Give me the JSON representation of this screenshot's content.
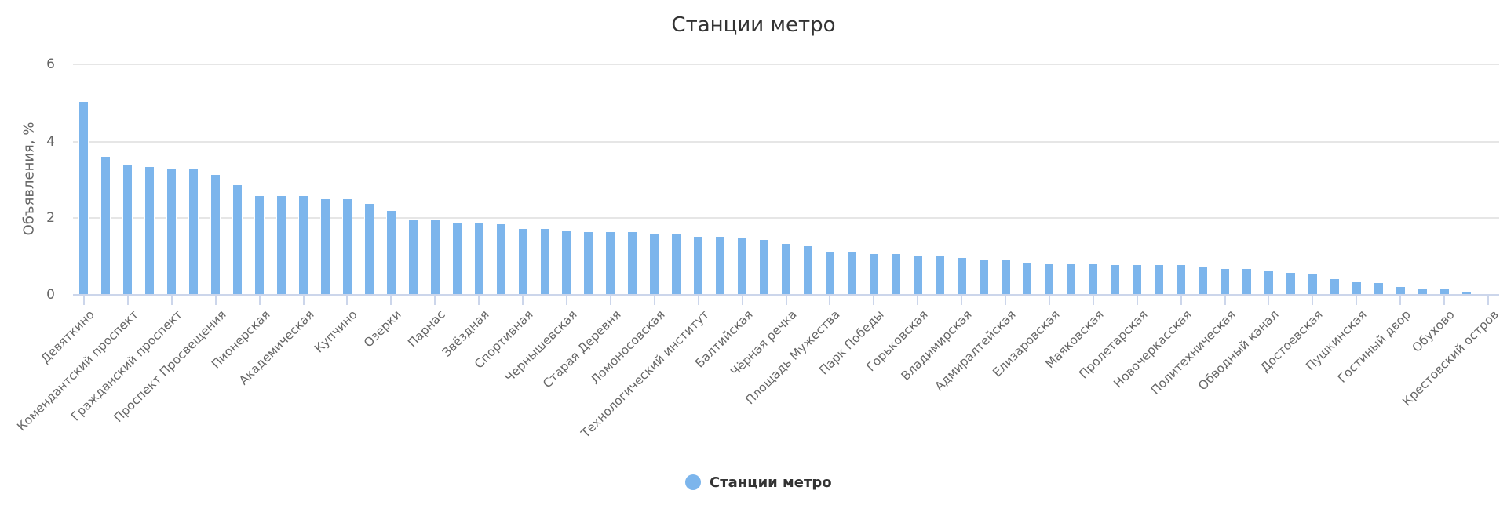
{
  "chart": {
    "title": "Станции метро",
    "y_axis_title": "Объявления, %",
    "y_ticks": [
      "0",
      "2",
      "4",
      "6"
    ],
    "legend": {
      "label": "Станции метро",
      "color": "#7cb5ec"
    },
    "colors": {
      "bar": "#7cb5ec",
      "grid": "#e6e6e6",
      "axis": "#ccd6eb",
      "text": "#666666",
      "title": "#333333"
    }
  },
  "chart_data": {
    "type": "bar",
    "title": "Станции метро",
    "xlabel": "",
    "ylabel": "Объявления, %",
    "ylim": [
      0,
      6
    ],
    "yticks": [
      0,
      2,
      4,
      6
    ],
    "grid": true,
    "legend_position": "bottom-center",
    "label_step": 2,
    "categories": [
      "Девяткино",
      null,
      "Комендантский проспект",
      null,
      "Гражданский проспект",
      null,
      "Проспект Просвещения",
      null,
      "Пионерская",
      null,
      "Академическая",
      null,
      "Купчино",
      null,
      "Озерки",
      null,
      "Парнас",
      null,
      "Звёздная",
      null,
      "Спортивная",
      null,
      "Чернышевская",
      null,
      "Старая Деревня",
      null,
      "Ломоносовская",
      null,
      "Технологический институт",
      null,
      "Балтийская",
      null,
      "Чёрная речка",
      null,
      "Площадь Мужества",
      null,
      "Парк Победы",
      null,
      "Горьковская",
      null,
      "Владимирская",
      null,
      "Адмиралтейская",
      null,
      "Елизаровская",
      null,
      "Маяковская",
      null,
      "Пролетарская",
      null,
      "Новочеркасская",
      null,
      "Политехническая",
      null,
      "Обводный канал",
      null,
      "Достоевская",
      null,
      "Пушкинская",
      null,
      "Гостиный двор",
      null,
      "Обухово",
      null,
      "Крестовский остров"
    ],
    "series": [
      {
        "name": "Станции метро",
        "values": [
          5.04,
          3.6,
          3.38,
          3.34,
          3.3,
          3.3,
          3.14,
          2.87,
          2.57,
          2.57,
          2.57,
          2.5,
          2.5,
          2.37,
          2.2,
          1.97,
          1.97,
          1.88,
          1.88,
          1.84,
          1.73,
          1.73,
          1.67,
          1.63,
          1.63,
          1.63,
          1.6,
          1.6,
          1.51,
          1.51,
          1.47,
          1.43,
          1.33,
          1.26,
          1.13,
          1.1,
          1.06,
          1.06,
          1.0,
          1.0,
          0.96,
          0.93,
          0.93,
          0.83,
          0.8,
          0.8,
          0.8,
          0.77,
          0.77,
          0.77,
          0.77,
          0.74,
          0.67,
          0.67,
          0.64,
          0.57,
          0.53,
          0.4,
          0.33,
          0.3,
          0.2,
          0.16,
          0.16,
          0.06,
          0.03
        ]
      }
    ]
  }
}
